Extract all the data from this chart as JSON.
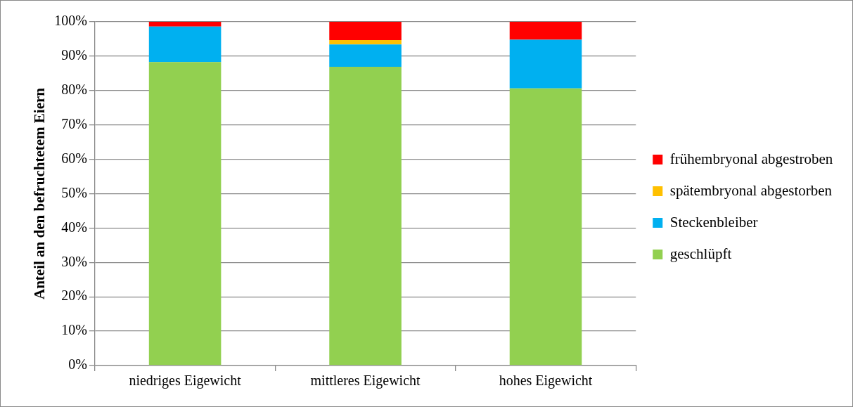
{
  "chart_data": {
    "type": "bar",
    "stacked": true,
    "ylabel": "Anteil an den befruchtetem Eiern",
    "categories": [
      "niedriges Eigewicht",
      "mittleres Eigewicht",
      "hohes Eigewicht"
    ],
    "series": [
      {
        "name": "geschlüpft",
        "color": "#92d050",
        "values": [
          88.3,
          86.9,
          80.6
        ]
      },
      {
        "name": "Steckenbleiber",
        "color": "#00b0f0",
        "values": [
          10.3,
          6.5,
          14.2
        ]
      },
      {
        "name": "spätembryonal abgestorben",
        "color": "#ffc000",
        "values": [
          0,
          1.3,
          0
        ]
      },
      {
        "name": "frühembryonal abgestroben",
        "color": "#ff0000",
        "values": [
          1.4,
          5.3,
          5.2
        ]
      }
    ],
    "ylim": [
      0,
      100
    ],
    "yticks": [
      {
        "value": 0,
        "label": "0%"
      },
      {
        "value": 10,
        "label": "10%"
      },
      {
        "value": 20,
        "label": "20%"
      },
      {
        "value": 30,
        "label": "30%"
      },
      {
        "value": 40,
        "label": "40%"
      },
      {
        "value": 50,
        "label": "50%"
      },
      {
        "value": 60,
        "label": "60%"
      },
      {
        "value": 70,
        "label": "70%"
      },
      {
        "value": 80,
        "label": "80%"
      },
      {
        "value": 90,
        "label": "90%"
      },
      {
        "value": 100,
        "label": "100%"
      }
    ],
    "grid": "y",
    "legend": "right"
  }
}
